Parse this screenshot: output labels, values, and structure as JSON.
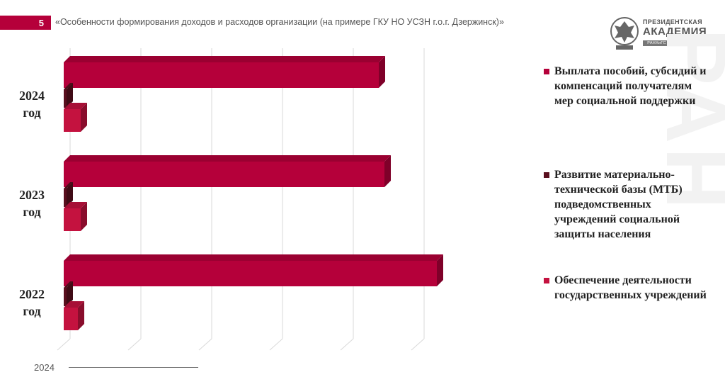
{
  "header": {
    "slide_number": "5",
    "title": "«Особенности формирования доходов и расходов организации (на примере ГКУ НО УСЗН г.о.г. Дзержинск)»"
  },
  "logo": {
    "line1": "ПРЕЗИДЕНТСКАЯ",
    "line2": "АКАДЕМИЯ",
    "line3": "РАНХиГС  ДЗЕРЖИНСК"
  },
  "footer": {
    "year": "2024"
  },
  "colors": {
    "primary": "#b5003a",
    "dark": "#5a0f1e",
    "light": "#c4123f"
  },
  "chart_data": {
    "type": "bar",
    "orientation": "horizontal",
    "categories": [
      "2024 год",
      "2023 год",
      "2022 год"
    ],
    "series": [
      {
        "name": "Выплата пособий, субсидий и компенсаций получателям мер социальной поддержки",
        "values": [
          445,
          453,
          527
        ],
        "color": "#b5003a"
      },
      {
        "name": "Развитие материально-технической базы (МТБ) подведомственных учреждений социальной защиты населения",
        "values": [
          4,
          4,
          4
        ],
        "color": "#5a0f1e"
      },
      {
        "name": "Обеспечение деятельности государственных учреждений",
        "values": [
          24,
          24,
          20
        ],
        "color": "#c4123f"
      }
    ],
    "xlim": [
      0,
      560
    ],
    "grid": true,
    "legend": "right"
  }
}
